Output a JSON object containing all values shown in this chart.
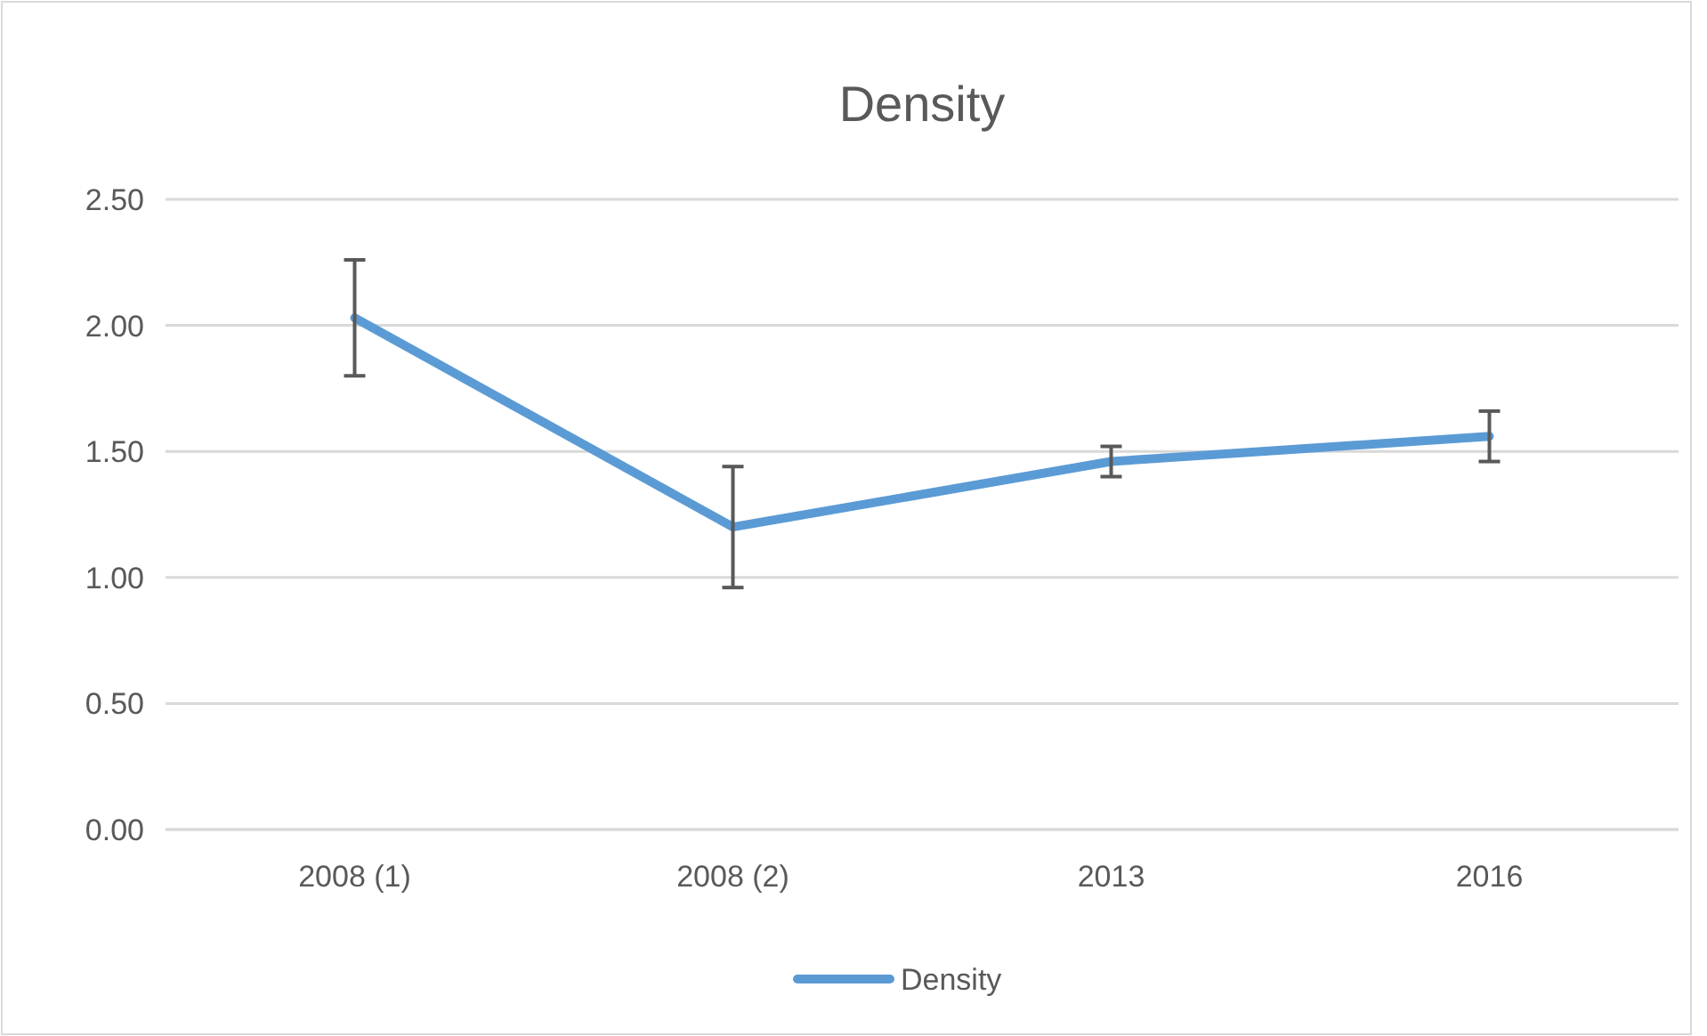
{
  "chart_data": {
    "type": "line",
    "title": "Density",
    "categories": [
      "2008 (1)",
      "2008 (2)",
      "2013",
      "2016"
    ],
    "series": [
      {
        "name": "Density",
        "color": "#5b9bd5",
        "values": [
          2.03,
          1.2,
          1.46,
          1.56
        ],
        "errors": [
          0.23,
          0.24,
          0.06,
          0.1
        ]
      }
    ],
    "ylim": [
      0,
      2.5
    ],
    "yticks": [
      {
        "value": 0,
        "label": "0.00"
      },
      {
        "value": 0.5,
        "label": "0.50"
      },
      {
        "value": 1,
        "label": "1.00"
      },
      {
        "value": 1.5,
        "label": "1.50"
      },
      {
        "value": 2,
        "label": "2.00"
      },
      {
        "value": 2.5,
        "label": "2.50"
      }
    ],
    "grid": "y",
    "legend": "bottom",
    "marker": "none",
    "line_style": "solid"
  }
}
